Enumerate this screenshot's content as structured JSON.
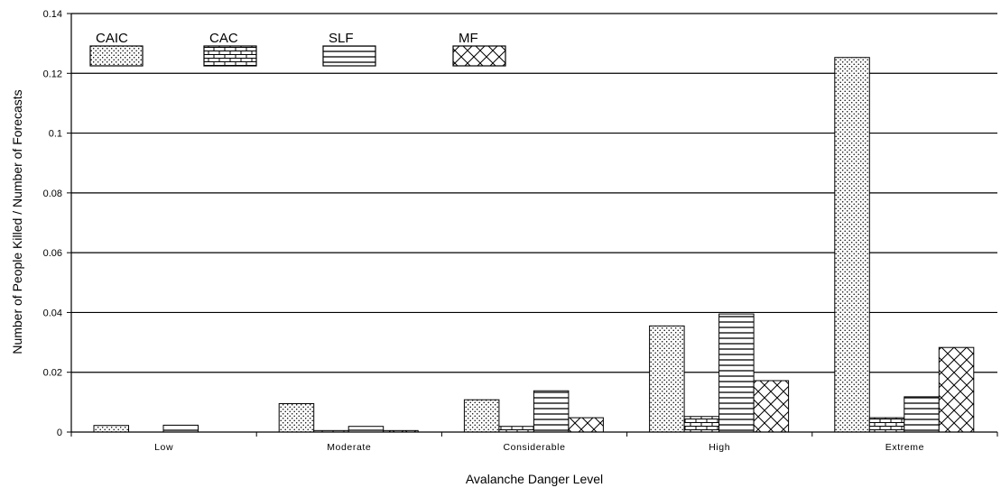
{
  "chart_data": {
    "type": "bar",
    "title": "",
    "xlabel": "Avalanche Danger Level",
    "ylabel": "Number of People Killed / Number of Forecasts",
    "categories": [
      "Low",
      "Moderate",
      "Considerable",
      "High",
      "Extreme"
    ],
    "series": [
      {
        "name": "CAIC",
        "pattern": "dots",
        "values": [
          0.0022,
          0.0095,
          0.0108,
          0.0355,
          0.1253
        ]
      },
      {
        "name": "CAC",
        "pattern": "bricks",
        "values": [
          0.0,
          0.0005,
          0.0019,
          0.0052,
          0.0048
        ]
      },
      {
        "name": "SLF",
        "pattern": "horizontal-lines",
        "values": [
          0.0023,
          0.0019,
          0.0138,
          0.0395,
          0.0118
        ]
      },
      {
        "name": "MF",
        "pattern": "diagonal-crosshatch",
        "values": [
          0.0,
          0.0005,
          0.0048,
          0.0172,
          0.0283
        ]
      }
    ],
    "ylim": [
      0,
      0.14
    ],
    "y_ticks": [
      "0",
      "0.02",
      "0.04",
      "0.06",
      "0.08",
      "0.1",
      "0.12",
      "0.14"
    ],
    "grid": true,
    "legend_position": "top-left",
    "colors": {
      "bar_fill": "#ffffff",
      "bar_stroke": "#000000",
      "gridline": "#000000"
    }
  }
}
